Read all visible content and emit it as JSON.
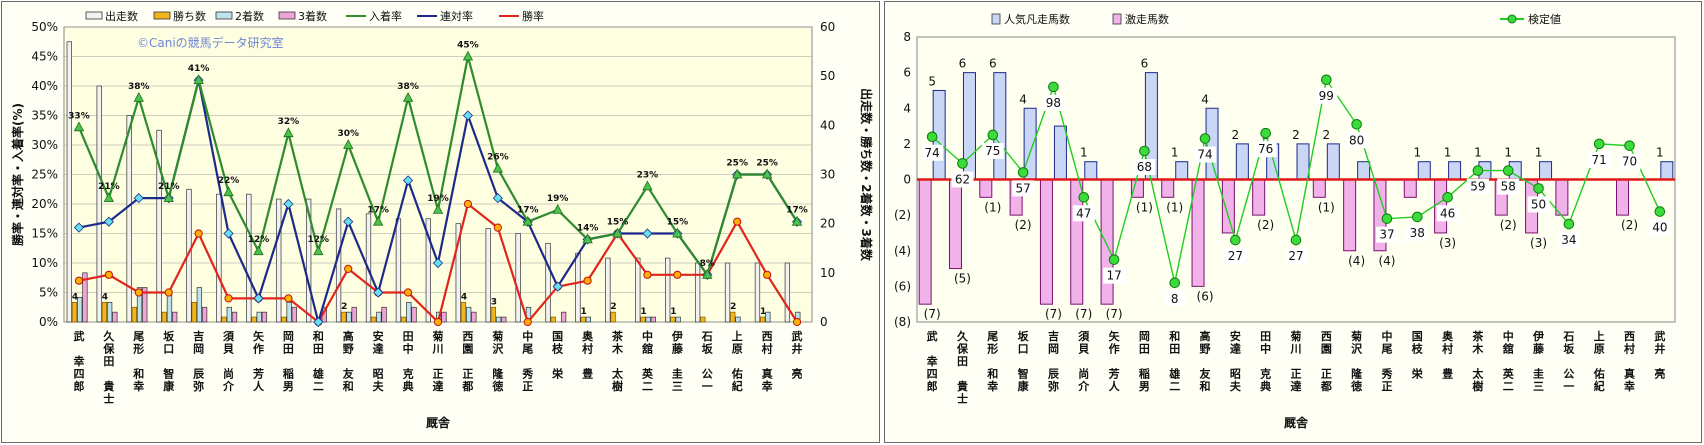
{
  "chart_data": [
    {
      "type": "bar",
      "trainers": [
        "武 幸四郎",
        "久保田 貴士",
        "尾形 和幸",
        "坂口 智康",
        "吉岡 辰弥",
        "須貝 尚介",
        "矢作 芳人",
        "岡田 稲男",
        "和田 雄二",
        "高野 友和",
        "安達 昭夫",
        "田中 克典",
        "菊川 正達",
        "西園 正都",
        "菊沢 隆徳",
        "中尾 秀正",
        "国枝 栄",
        "奥村 豊",
        "茶木 太樹",
        "中舘 英二",
        "伊藤 圭三",
        "石坂 公一",
        "上原 佑紀",
        "西村 真幸",
        "武井 亮"
      ],
      "legend": [
        "出走数",
        "勝ち数",
        "2着数",
        "3着数",
        "入着率",
        "連対率",
        "勝率"
      ],
      "colors": {
        "runs": "#f2f2f2",
        "wins": "#f2b51b",
        "second": "#bfe3ee",
        "third": "#f0a3d6",
        "place": "#2e8b2e",
        "rentai": "#1c2a8a",
        "win": "#e0251c"
      },
      "watermark": "©Caniの競馬データ研究室",
      "ylabel_left": "勝率・連対率・入着率(%)",
      "ylabel_right": "出走数・勝ち数・2着数・3着数",
      "xlabel": "厩舎",
      "y_left_ticks": [
        "0%",
        "5%",
        "10%",
        "15%",
        "20%",
        "25%",
        "30%",
        "35%",
        "40%",
        "45%",
        "50%"
      ],
      "y_right_ticks": [
        "0",
        "10",
        "20",
        "30",
        "40",
        "50",
        "60"
      ],
      "ylim_left": [
        0,
        50
      ],
      "ylim_right": [
        0,
        60
      ],
      "runs": [
        57,
        48,
        42,
        39,
        27,
        26,
        26,
        25,
        25,
        23,
        22,
        21,
        21,
        20,
        19,
        18,
        16,
        14,
        13,
        13,
        13,
        12,
        12,
        12,
        12
      ],
      "wins": [
        4,
        4,
        3,
        2,
        4,
        1,
        1,
        1,
        0,
        2,
        1,
        1,
        0,
        4,
        3,
        0,
        1,
        1,
        2,
        1,
        1,
        1,
        2,
        1,
        0
      ],
      "second": [
        5,
        4,
        7,
        6,
        7,
        3,
        2,
        4,
        0,
        2,
        2,
        4,
        2,
        3,
        1,
        3,
        0,
        1,
        0,
        1,
        1,
        0,
        1,
        2,
        2
      ],
      "third": [
        10,
        2,
        7,
        2,
        3,
        2,
        2,
        3,
        3,
        3,
        3,
        3,
        2,
        2,
        1,
        0,
        2,
        0,
        0,
        1,
        0,
        0,
        0,
        0,
        0
      ],
      "place_rate": [
        33,
        21,
        38,
        21,
        41,
        22,
        12,
        32,
        12,
        30,
        17,
        38,
        19,
        45,
        26,
        17,
        19,
        14,
        15,
        23,
        15,
        8,
        25,
        25,
        17
      ],
      "rentai_rate": [
        16,
        17,
        21,
        21,
        41,
        15,
        4,
        20,
        0,
        17,
        5,
        24,
        10,
        35,
        21,
        17,
        6,
        14,
        15,
        15,
        15,
        8,
        25,
        25,
        17
      ],
      "win_rate": [
        7,
        8,
        5,
        5,
        15,
        4,
        4,
        4,
        0,
        9,
        5,
        5,
        0,
        20,
        16,
        0,
        6,
        7,
        15,
        8,
        8,
        8,
        17,
        8,
        0
      ],
      "place_labels": [
        "33%",
        "21%",
        "38%",
        "21%",
        "41%",
        "22%",
        "12%",
        "32%",
        "12%",
        "30%",
        "17%",
        "38%",
        "19%",
        "45%",
        "26%",
        "17%",
        "19%",
        "14%",
        "15%",
        "23%",
        "15%",
        "8%",
        "25%",
        "25%",
        "17%"
      ],
      "wins_labels": [
        "4",
        "4",
        "",
        "",
        "",
        "",
        "",
        "",
        "",
        "2",
        "",
        "",
        "",
        "4",
        "3",
        "",
        "",
        "1",
        "2",
        "1",
        "1",
        "",
        "2",
        "1",
        ""
      ]
    },
    {
      "type": "bar",
      "trainers": [
        "武 幸四郎",
        "久保田 貴士",
        "尾形 和幸",
        "坂口 智康",
        "吉岡 辰弥",
        "須貝 尚介",
        "矢作 芳人",
        "岡田 稲男",
        "和田 雄二",
        "高野 友和",
        "安達 昭夫",
        "田中 克典",
        "菊川 正達",
        "西園 正都",
        "菊沢 隆徳",
        "中尾 秀正",
        "国枝 栄",
        "奥村 豊",
        "茶木 太樹",
        "中舘 英二",
        "伊藤 圭三",
        "石坂 公一",
        "上原 佑紀",
        "西村 真幸",
        "武井 亮"
      ],
      "legend": [
        "人気凡走馬数",
        "激走馬数",
        "検定値"
      ],
      "colors": {
        "upset": "#c9d6f5",
        "flop": "#f0b2e8",
        "test": "#22cc22",
        "zero": "#e01818"
      },
      "xlabel": "厩舎",
      "y_ticks": [
        "8",
        "6",
        "4",
        "2",
        "0",
        "(2)",
        "(4)",
        "(6)",
        "(8)"
      ],
      "ylim": [
        -8,
        8
      ],
      "upset": [
        5,
        6,
        6,
        4,
        3,
        1,
        0,
        6,
        1,
        4,
        2,
        2,
        2,
        2,
        1,
        0,
        1,
        1,
        1,
        1,
        1,
        0,
        0,
        0,
        1
      ],
      "flop": [
        -7,
        -5,
        -1,
        -2,
        -7,
        -7,
        -7,
        -1,
        -1,
        -6,
        -3,
        -2,
        0,
        -1,
        -4,
        -4,
        -1,
        -3,
        0,
        -2,
        -3,
        -2,
        0,
        -2,
        0
      ],
      "upset_labels": [
        "5",
        "6",
        "6",
        "4",
        "",
        "1",
        "",
        "6",
        "1",
        "4",
        "2",
        "2",
        "2",
        "2",
        "",
        "",
        "1",
        "1",
        "1",
        "1",
        "1",
        "",
        "",
        "",
        "1"
      ],
      "flop_labels": [
        "(7)",
        "(5)",
        "(1)",
        "(2)",
        "(7)",
        "(7)",
        "(7)",
        "(1)",
        "(1)",
        "(6)",
        "",
        "(2)",
        "",
        "(1)",
        "(4)",
        "(4)",
        "",
        "(3)",
        "",
        "(2)",
        "(3)",
        "",
        "",
        "(2)",
        ""
      ],
      "test_values": [
        74,
        62,
        75,
        57,
        98,
        47,
        17,
        68,
        8,
        74,
        27,
        76,
        27,
        99,
        80,
        37,
        38,
        46,
        59,
        58,
        50,
        34,
        71,
        70,
        40
      ],
      "test_y": [
        2.4,
        0.9,
        2.5,
        0.4,
        5.2,
        -1.0,
        -4.5,
        1.6,
        -5.8,
        2.3,
        -3.4,
        2.6,
        -3.4,
        5.6,
        3.1,
        -2.2,
        -2.1,
        -1.0,
        0.5,
        0.5,
        -0.5,
        -2.5,
        2.0,
        1.9,
        -1.8
      ]
    }
  ]
}
